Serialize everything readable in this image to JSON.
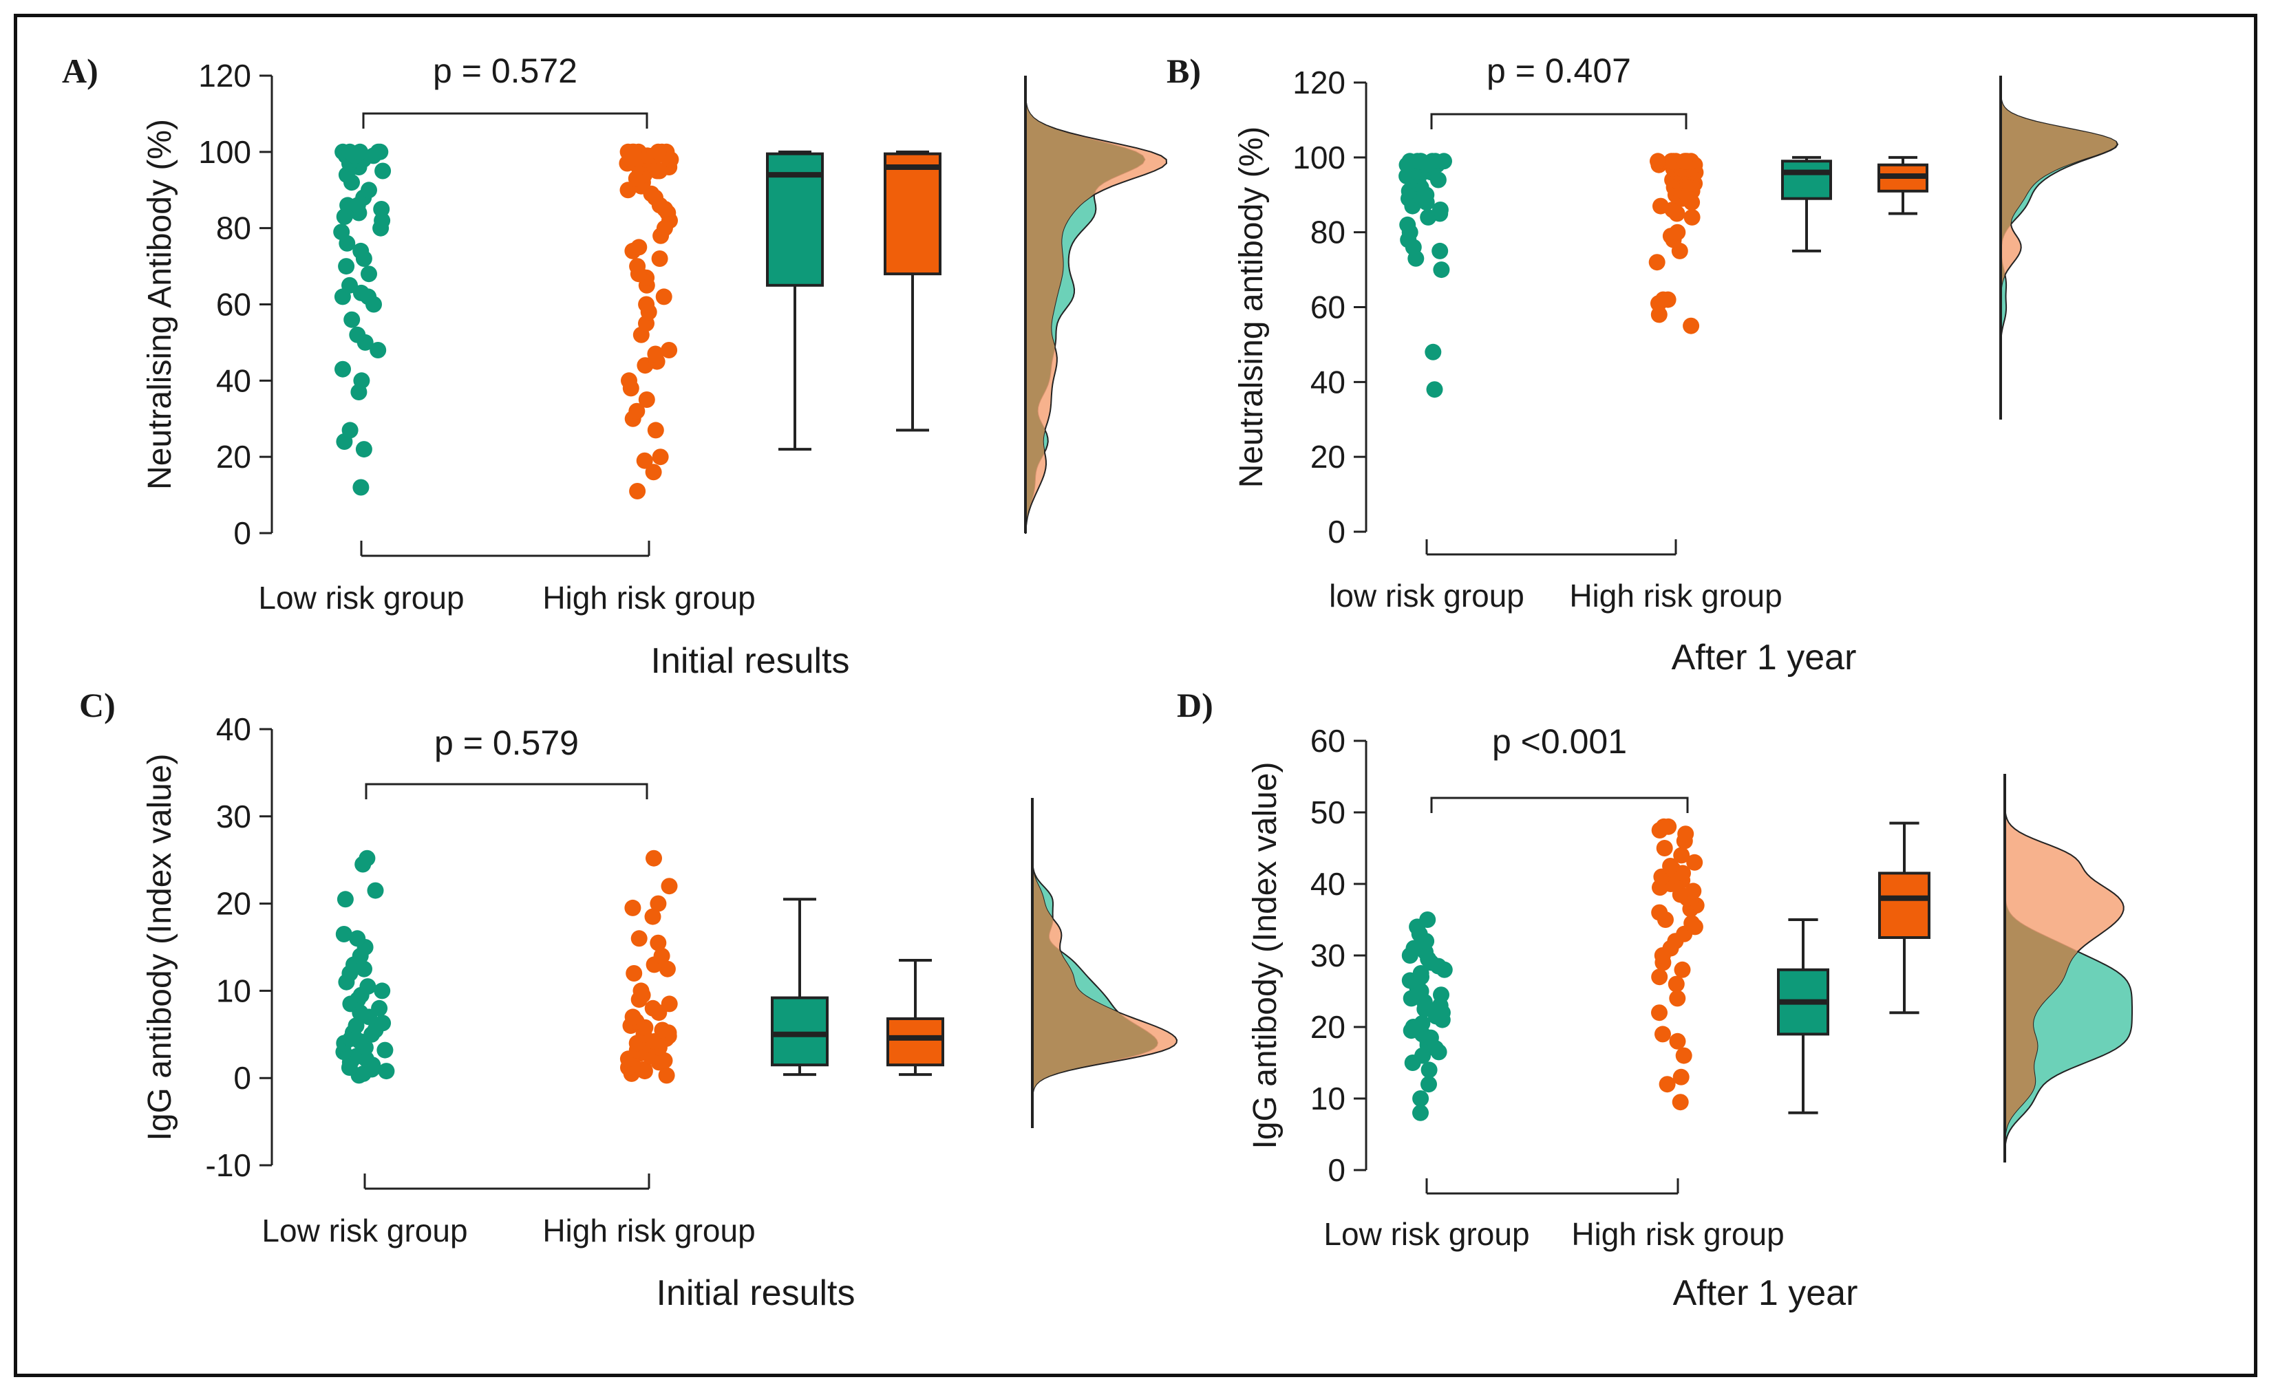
{
  "figure": {
    "colors": {
      "low": "#0e9a79",
      "high": "#f05f0a",
      "axis": "#222222",
      "density_low": "#52c9ac",
      "density_high": "#f6a479",
      "density_overlap": "#b18c5a"
    }
  },
  "chart_data": [
    {
      "type": "scatter",
      "panel": "A)",
      "title": "",
      "xlabel": "Initial results",
      "ylabel": "Neutralising Antibody (%)",
      "ylim": [
        0,
        120
      ],
      "yticks": [
        0,
        20,
        40,
        60,
        80,
        100,
        120
      ],
      "categories": [
        "Low risk group",
        "High risk group"
      ],
      "pvalue": "p = 0.572",
      "series": [
        {
          "name": "Low risk group",
          "color": "#0e9a79",
          "values": [
            12,
            22,
            24,
            27,
            37,
            40,
            43,
            48,
            50,
            52,
            56,
            60,
            62,
            62,
            63,
            65,
            68,
            70,
            72,
            74,
            76,
            79,
            80,
            82,
            83,
            84,
            85,
            86,
            86,
            88,
            90,
            92,
            94,
            95,
            96,
            97,
            98,
            98,
            99,
            99,
            99,
            99,
            100,
            100,
            100,
            100,
            100
          ]
        },
        {
          "name": "High risk group",
          "color": "#f05f0a",
          "values": [
            11,
            16,
            19,
            20,
            27,
            30,
            32,
            35,
            38,
            40,
            44,
            45,
            47,
            48,
            52,
            55,
            58,
            60,
            62,
            65,
            67,
            68,
            70,
            72,
            74,
            75,
            78,
            80,
            82,
            84,
            85,
            86,
            88,
            89,
            90,
            91,
            92,
            93,
            94,
            95,
            95,
            96,
            96,
            97,
            97,
            97,
            98,
            98,
            98,
            99,
            99,
            99,
            99,
            100,
            100,
            100,
            100,
            100,
            100,
            100
          ]
        }
      ],
      "boxes": [
        {
          "name": "Low risk group",
          "min": 22,
          "q1": 65,
          "median": 94,
          "q3": 99.5,
          "max": 100
        },
        {
          "name": "High risk group",
          "min": 27,
          "q1": 68,
          "median": 96,
          "q3": 99.5,
          "max": 100
        }
      ]
    },
    {
      "type": "scatter",
      "panel": "B)",
      "title": "",
      "xlabel": "After 1 year",
      "ylabel": "Neutralsing antibody (%)",
      "ylim": [
        0,
        120
      ],
      "yticks": [
        0,
        20,
        40,
        60,
        80,
        100,
        120
      ],
      "categories": [
        "low risk group",
        "High risk group"
      ],
      "pvalue": "p = 0.407",
      "series": [
        {
          "name": "low risk group",
          "color": "#0e9a79",
          "values": [
            38,
            48,
            70,
            73,
            75,
            76,
            78,
            80,
            82,
            84,
            85,
            86,
            87,
            88,
            89,
            90,
            90,
            91,
            92,
            93,
            93,
            94,
            94,
            95,
            95,
            96,
            96,
            96,
            97,
            97,
            97,
            98,
            98,
            98,
            98,
            99,
            99,
            99,
            99,
            99,
            99,
            99
          ]
        },
        {
          "name": "High risk group",
          "color": "#f05f0a",
          "values": [
            55,
            58,
            61,
            62,
            62,
            72,
            75,
            78,
            79,
            80,
            84,
            85,
            86,
            87,
            88,
            89,
            90,
            91,
            91,
            92,
            93,
            93,
            94,
            94,
            95,
            95,
            96,
            96,
            96,
            97,
            97,
            97,
            98,
            98,
            98,
            98,
            99,
            99,
            99,
            99,
            99,
            99,
            99,
            99
          ]
        }
      ],
      "boxes": [
        {
          "name": "low risk group",
          "min": 75,
          "q1": 89,
          "median": 96,
          "q3": 99,
          "max": 100
        },
        {
          "name": "High risk group",
          "min": 85,
          "q1": 91,
          "median": 95,
          "q3": 98,
          "max": 100
        }
      ]
    },
    {
      "type": "scatter",
      "panel": "C)",
      "title": "",
      "xlabel": "Initial results",
      "ylabel": "IgG antibody (Index value)",
      "ylim": [
        -10,
        40
      ],
      "yticks": [
        -10,
        0,
        10,
        20,
        30,
        40
      ],
      "categories": [
        "Low risk group",
        "High risk group"
      ],
      "pvalue": "p = 0.579",
      "series": [
        {
          "name": "Low risk group",
          "color": "#0e9a79",
          "values": [
            0.3,
            0.5,
            0.8,
            1,
            1.2,
            1.5,
            1.8,
            2,
            2.2,
            2.5,
            3,
            3.2,
            3.5,
            4,
            4.2,
            4.5,
            5,
            5.2,
            5.5,
            6,
            6.3,
            7,
            7.5,
            8,
            8.5,
            9,
            9.5,
            10,
            10.5,
            11,
            12,
            12.5,
            13,
            14,
            15,
            16,
            16.5,
            20.5,
            21.5,
            24.5,
            25.2
          ]
        },
        {
          "name": "High risk group",
          "color": "#f05f0a",
          "values": [
            0.3,
            0.5,
            0.8,
            1,
            1,
            1.2,
            1.5,
            1.8,
            2,
            2.2,
            2.5,
            2.8,
            3,
            3.2,
            3.5,
            3.8,
            4,
            4.2,
            4.5,
            4.8,
            5,
            5.2,
            5.5,
            5.8,
            6,
            6.5,
            7,
            7.5,
            8,
            8.5,
            9,
            9.5,
            10,
            12,
            12.5,
            13,
            14,
            15.5,
            16,
            18.5,
            19.5,
            20,
            22,
            25.2
          ]
        }
      ],
      "boxes": [
        {
          "name": "Low risk group",
          "min": 0.4,
          "q1": 1.5,
          "median": 5,
          "q3": 9.2,
          "max": 20.5
        },
        {
          "name": "High risk group",
          "min": 0.4,
          "q1": 1.5,
          "median": 4.6,
          "q3": 6.8,
          "max": 13.5
        }
      ]
    },
    {
      "type": "scatter",
      "panel": "D)",
      "title": "",
      "xlabel": "After 1 year",
      "ylabel": "IgG antibody (Index value)",
      "ylim": [
        0,
        60
      ],
      "yticks": [
        0,
        10,
        20,
        30,
        40,
        50,
        60
      ],
      "categories": [
        "Low risk group",
        "High risk group"
      ],
      "pvalue": "p <0.001",
      "series": [
        {
          "name": "Low risk group",
          "color": "#0e9a79",
          "values": [
            8,
            10,
            12,
            14,
            15,
            16,
            16.5,
            17,
            17.5,
            18,
            18.5,
            19,
            19.5,
            20,
            20.5,
            21,
            21.5,
            22,
            22.5,
            23,
            23.5,
            24,
            24.5,
            25,
            25.5,
            26,
            26.5,
            27,
            27.5,
            28,
            28.5,
            29,
            29.5,
            30,
            30.5,
            31,
            32,
            33,
            34,
            35
          ]
        },
        {
          "name": "High risk group",
          "color": "#f05f0a",
          "values": [
            9.5,
            12,
            13,
            16,
            18,
            19,
            22,
            24,
            26,
            27,
            28,
            29,
            30,
            31,
            32,
            33,
            34,
            34.5,
            35,
            36,
            36.5,
            37,
            37.5,
            38,
            38.5,
            39,
            39.5,
            40,
            40.5,
            41,
            41.5,
            42,
            42.5,
            43,
            44,
            45,
            46,
            47,
            47.5,
            48,
            48
          ]
        }
      ],
      "boxes": [
        {
          "name": "Low risk group",
          "min": 8,
          "q1": 19,
          "median": 23.5,
          "q3": 28,
          "max": 35
        },
        {
          "name": "High risk group",
          "min": 22,
          "q1": 32.5,
          "median": 38,
          "q3": 41.5,
          "max": 48.5
        }
      ]
    }
  ]
}
